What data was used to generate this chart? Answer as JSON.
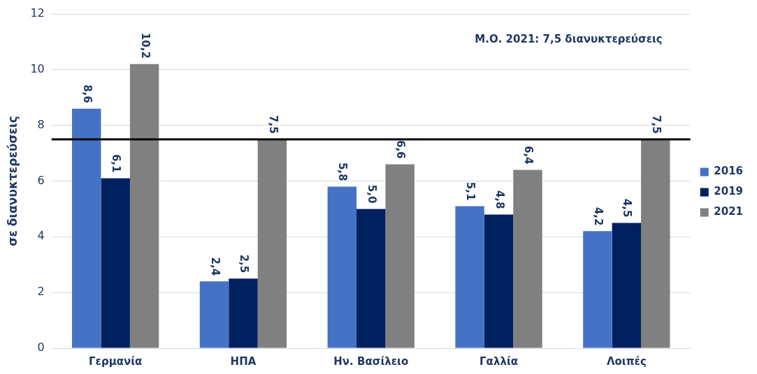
{
  "chart_data": {
    "type": "bar",
    "ylabel": "σε διανυκτερεύσεις",
    "categories": [
      "Γερμανία",
      "ΗΠΑ",
      "Ην. Βασίλειο",
      "Γαλλία",
      "Λοιπές"
    ],
    "series": [
      {
        "name": "2016",
        "color": "#4472c4",
        "values": [
          8.6,
          2.4,
          5.8,
          5.1,
          4.2
        ],
        "value_labels": [
          "8,6",
          "2,4",
          "5,8",
          "5,1",
          "4,2"
        ]
      },
      {
        "name": "2019",
        "color": "#002060",
        "values": [
          6.1,
          2.5,
          5.0,
          4.8,
          4.5
        ],
        "value_labels": [
          "6,1",
          "2,5",
          "5,0",
          "4,8",
          "4,5"
        ]
      },
      {
        "name": "2021",
        "color": "#808080",
        "values": [
          10.2,
          7.5,
          6.6,
          6.4,
          7.5
        ],
        "value_labels": [
          "10,2",
          "7,5",
          "6,6",
          "6,4",
          "7,5"
        ]
      }
    ],
    "ylim": [
      0,
      12
    ],
    "yticks": [
      0,
      2,
      4,
      6,
      8,
      10,
      12
    ],
    "grid": "y",
    "legend": "right",
    "ref_lines": [
      {
        "axis": "y",
        "value": 7.5,
        "color": "#000000"
      }
    ],
    "annotations": [
      "Μ.Ο. 2021: 7,5 διανυκτερεύσεις"
    ]
  }
}
